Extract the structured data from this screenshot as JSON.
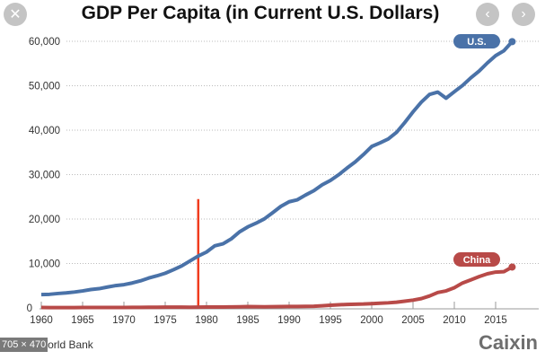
{
  "viewer": {
    "close_icon": "close-icon",
    "prev_icon": "chevron-left-icon",
    "next_icon": "chevron-right-icon",
    "dimensions_badge": "705 × 470"
  },
  "source": "World Bank",
  "brand": "Caixin",
  "chart_data": {
    "type": "line",
    "title": "GDP Per Capita (in Current U.S. Dollars)",
    "xlim": [
      1960,
      2019
    ],
    "ylim": [
      0,
      60000
    ],
    "x_ticks": [
      "1960",
      "1965",
      "1970",
      "1975",
      "1980",
      "1985",
      "1990",
      "1995",
      "2000",
      "2005",
      "2010",
      "2015"
    ],
    "y_ticks": [
      "0",
      "10,000",
      "20,000",
      "30,000",
      "40,000",
      "50,000",
      "60,000"
    ],
    "grid": "horizontal dotted",
    "annotation": {
      "type": "vertical line",
      "x": 1979,
      "y_top": 24500,
      "color": "#f03c1e"
    },
    "x": [
      1960,
      1961,
      1962,
      1963,
      1964,
      1965,
      1966,
      1967,
      1968,
      1969,
      1970,
      1971,
      1972,
      1973,
      1974,
      1975,
      1976,
      1977,
      1978,
      1979,
      1980,
      1981,
      1982,
      1983,
      1984,
      1985,
      1986,
      1987,
      1988,
      1989,
      1990,
      1991,
      1992,
      1993,
      1994,
      1995,
      1996,
      1997,
      1998,
      1999,
      2000,
      2001,
      2002,
      2003,
      2004,
      2005,
      2006,
      2007,
      2008,
      2009,
      2010,
      2011,
      2012,
      2013,
      2014,
      2015,
      2016,
      2017
    ],
    "series": [
      {
        "name": "U.S.",
        "color": "#4a72a8",
        "values": [
          3007,
          3067,
          3244,
          3375,
          3574,
          3828,
          4146,
          4336,
          4696,
          5032,
          5234,
          5609,
          6094,
          6726,
          7226,
          7801,
          8592,
          9453,
          10565,
          11674,
          12575,
          13976,
          14434,
          15544,
          17121,
          18237,
          19071,
          20039,
          21417,
          22857,
          23889,
          24342,
          25419,
          26387,
          27695,
          28691,
          29968,
          31459,
          32854,
          34513,
          36335,
          37133,
          38023,
          39496,
          41713,
          44115,
          46299,
          48050,
          48570,
          47195,
          48651,
          50066,
          51784,
          53291,
          55124,
          56763,
          57867,
          59927
        ]
      },
      {
        "name": "China",
        "color": "#b84a48",
        "values": [
          90,
          76,
          70,
          74,
          85,
          98,
          104,
          97,
          91,
          100,
          113,
          119,
          132,
          157,
          160,
          178,
          165,
          185,
          156,
          184,
          195,
          197,
          203,
          225,
          251,
          294,
          282,
          252,
          284,
          311,
          318,
          333,
          366,
          377,
          473,
          610,
          709,
          782,
          829,
          873,
          959,
          1053,
          1149,
          1289,
          1509,
          1753,
          2099,
          2694,
          3468,
          3832,
          4550,
          5618,
          6317,
          7051,
          7679,
          8067,
          8148,
          9200
        ]
      }
    ]
  }
}
